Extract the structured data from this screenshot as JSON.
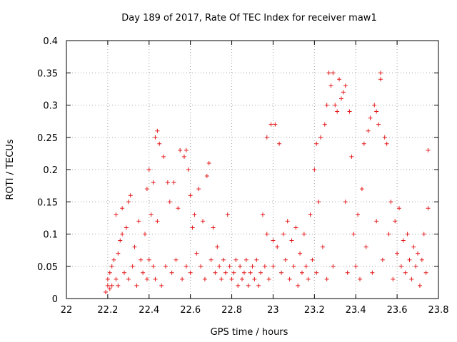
{
  "chart_data": {
    "type": "scatter",
    "title": "Day 189 of 2017, Rate Of TEC Index for receiver maw1",
    "xlabel": "GPS time / hours",
    "ylabel": "ROTI / TECUs",
    "xlim": [
      22,
      23.8
    ],
    "ylim": [
      0,
      0.4
    ],
    "xticks": [
      "22",
      "22.2",
      "22.4",
      "22.6",
      "22.8",
      "23",
      "23.2",
      "23.4",
      "23.6",
      "23.8"
    ],
    "yticks": [
      "0",
      "0.05",
      "0.1",
      "0.15",
      "0.2",
      "0.25",
      "0.3",
      "0.35",
      "0.4"
    ],
    "grid": true,
    "marker": "plus",
    "color": "#e41a1c",
    "series": [
      {
        "name": "ROTI",
        "points": [
          [
            22.19,
            0.01
          ],
          [
            22.2,
            0.02
          ],
          [
            22.2,
            0.03
          ],
          [
            22.21,
            0.015
          ],
          [
            22.21,
            0.04
          ],
          [
            22.22,
            0.05
          ],
          [
            22.22,
            0.02
          ],
          [
            22.23,
            0.06
          ],
          [
            22.24,
            0.03
          ],
          [
            22.24,
            0.13
          ],
          [
            22.25,
            0.07
          ],
          [
            22.25,
            0.02
          ],
          [
            22.26,
            0.09
          ],
          [
            22.27,
            0.1
          ],
          [
            22.27,
            0.14
          ],
          [
            22.28,
            0.04
          ],
          [
            22.29,
            0.11
          ],
          [
            22.3,
            0.15
          ],
          [
            22.3,
            0.03
          ],
          [
            22.31,
            0.16
          ],
          [
            22.32,
            0.05
          ],
          [
            22.33,
            0.08
          ],
          [
            22.34,
            0.02
          ],
          [
            22.35,
            0.12
          ],
          [
            22.36,
            0.06
          ],
          [
            22.37,
            0.04
          ],
          [
            22.38,
            0.1
          ],
          [
            22.39,
            0.03
          ],
          [
            22.39,
            0.17
          ],
          [
            22.4,
            0.2
          ],
          [
            22.4,
            0.06
          ],
          [
            22.41,
            0.13
          ],
          [
            22.42,
            0.05
          ],
          [
            22.42,
            0.18
          ],
          [
            22.43,
            0.25
          ],
          [
            22.43,
            0.03
          ],
          [
            22.44,
            0.26
          ],
          [
            22.44,
            0.12
          ],
          [
            22.45,
            0.24
          ],
          [
            22.46,
            0.02
          ],
          [
            22.47,
            0.22
          ],
          [
            22.48,
            0.05
          ],
          [
            22.49,
            0.18
          ],
          [
            22.5,
            0.15
          ],
          [
            22.51,
            0.04
          ],
          [
            22.52,
            0.18
          ],
          [
            22.53,
            0.06
          ],
          [
            22.54,
            0.14
          ],
          [
            22.55,
            0.23
          ],
          [
            22.56,
            0.03
          ],
          [
            22.57,
            0.22
          ],
          [
            22.58,
            0.23
          ],
          [
            22.58,
            0.05
          ],
          [
            22.59,
            0.2
          ],
          [
            22.6,
            0.16
          ],
          [
            22.6,
            0.04
          ],
          [
            22.61,
            0.11
          ],
          [
            22.62,
            0.13
          ],
          [
            22.63,
            0.07
          ],
          [
            22.64,
            0.17
          ],
          [
            22.65,
            0.05
          ],
          [
            22.66,
            0.12
          ],
          [
            22.67,
            0.03
          ],
          [
            22.68,
            0.19
          ],
          [
            22.69,
            0.21
          ],
          [
            22.7,
            0.06
          ],
          [
            22.71,
            0.11
          ],
          [
            22.72,
            0.04
          ],
          [
            22.73,
            0.08
          ],
          [
            22.74,
            0.05
          ],
          [
            22.75,
            0.03
          ],
          [
            22.76,
            0.06
          ],
          [
            22.77,
            0.04
          ],
          [
            22.78,
            0.13
          ],
          [
            22.79,
            0.05
          ],
          [
            22.8,
            0.03
          ],
          [
            22.81,
            0.04
          ],
          [
            22.82,
            0.06
          ],
          [
            22.83,
            0.02
          ],
          [
            22.84,
            0.05
          ],
          [
            22.85,
            0.03
          ],
          [
            22.86,
            0.04
          ],
          [
            22.87,
            0.06
          ],
          [
            22.88,
            0.02
          ],
          [
            22.89,
            0.04
          ],
          [
            22.9,
            0.05
          ],
          [
            22.91,
            0.03
          ],
          [
            22.92,
            0.06
          ],
          [
            22.93,
            0.02
          ],
          [
            22.94,
            0.04
          ],
          [
            22.95,
            0.13
          ],
          [
            22.96,
            0.05
          ],
          [
            22.97,
            0.25
          ],
          [
            22.97,
            0.1
          ],
          [
            22.98,
            0.03
          ],
          [
            22.99,
            0.27
          ],
          [
            23.0,
            0.09
          ],
          [
            23.0,
            0.05
          ],
          [
            23.01,
            0.27
          ],
          [
            23.02,
            0.08
          ],
          [
            23.03,
            0.24
          ],
          [
            23.04,
            0.04
          ],
          [
            23.05,
            0.1
          ],
          [
            23.06,
            0.06
          ],
          [
            23.07,
            0.12
          ],
          [
            23.08,
            0.03
          ],
          [
            23.09,
            0.09
          ],
          [
            23.1,
            0.05
          ],
          [
            23.11,
            0.11
          ],
          [
            23.12,
            0.02
          ],
          [
            23.13,
            0.07
          ],
          [
            23.14,
            0.04
          ],
          [
            23.15,
            0.1
          ],
          [
            23.16,
            0.05
          ],
          [
            23.17,
            0.03
          ],
          [
            23.18,
            0.13
          ],
          [
            23.19,
            0.06
          ],
          [
            23.2,
            0.2
          ],
          [
            23.21,
            0.24
          ],
          [
            23.21,
            0.04
          ],
          [
            23.22,
            0.15
          ],
          [
            23.23,
            0.25
          ],
          [
            23.24,
            0.08
          ],
          [
            23.25,
            0.27
          ],
          [
            23.26,
            0.3
          ],
          [
            23.26,
            0.03
          ],
          [
            23.27,
            0.35
          ],
          [
            23.28,
            0.33
          ],
          [
            23.29,
            0.35
          ],
          [
            23.29,
            0.05
          ],
          [
            23.3,
            0.3
          ],
          [
            23.31,
            0.29
          ],
          [
            23.32,
            0.34
          ],
          [
            23.33,
            0.31
          ],
          [
            23.34,
            0.32
          ],
          [
            23.35,
            0.33
          ],
          [
            23.35,
            0.15
          ],
          [
            23.36,
            0.04
          ],
          [
            23.37,
            0.29
          ],
          [
            23.38,
            0.22
          ],
          [
            23.39,
            0.1
          ],
          [
            23.4,
            0.05
          ],
          [
            23.41,
            0.13
          ],
          [
            23.42,
            0.03
          ],
          [
            23.43,
            0.17
          ],
          [
            23.44,
            0.24
          ],
          [
            23.45,
            0.08
          ],
          [
            23.46,
            0.26
          ],
          [
            23.47,
            0.28
          ],
          [
            23.48,
            0.04
          ],
          [
            23.49,
            0.3
          ],
          [
            23.5,
            0.29
          ],
          [
            23.5,
            0.12
          ],
          [
            23.51,
            0.27
          ],
          [
            23.52,
            0.35
          ],
          [
            23.52,
            0.34
          ],
          [
            23.53,
            0.06
          ],
          [
            23.54,
            0.25
          ],
          [
            23.55,
            0.24
          ],
          [
            23.56,
            0.1
          ],
          [
            23.57,
            0.15
          ],
          [
            23.58,
            0.03
          ],
          [
            23.59,
            0.12
          ],
          [
            23.6,
            0.07
          ],
          [
            23.61,
            0.14
          ],
          [
            23.62,
            0.05
          ],
          [
            23.63,
            0.09
          ],
          [
            23.64,
            0.04
          ],
          [
            23.65,
            0.1
          ],
          [
            23.66,
            0.06
          ],
          [
            23.67,
            0.03
          ],
          [
            23.68,
            0.08
          ],
          [
            23.69,
            0.05
          ],
          [
            23.7,
            0.07
          ],
          [
            23.71,
            0.02
          ],
          [
            23.72,
            0.06
          ],
          [
            23.73,
            0.1
          ],
          [
            23.74,
            0.04
          ],
          [
            23.75,
            0.23
          ],
          [
            23.75,
            0.14
          ]
        ]
      }
    ]
  }
}
